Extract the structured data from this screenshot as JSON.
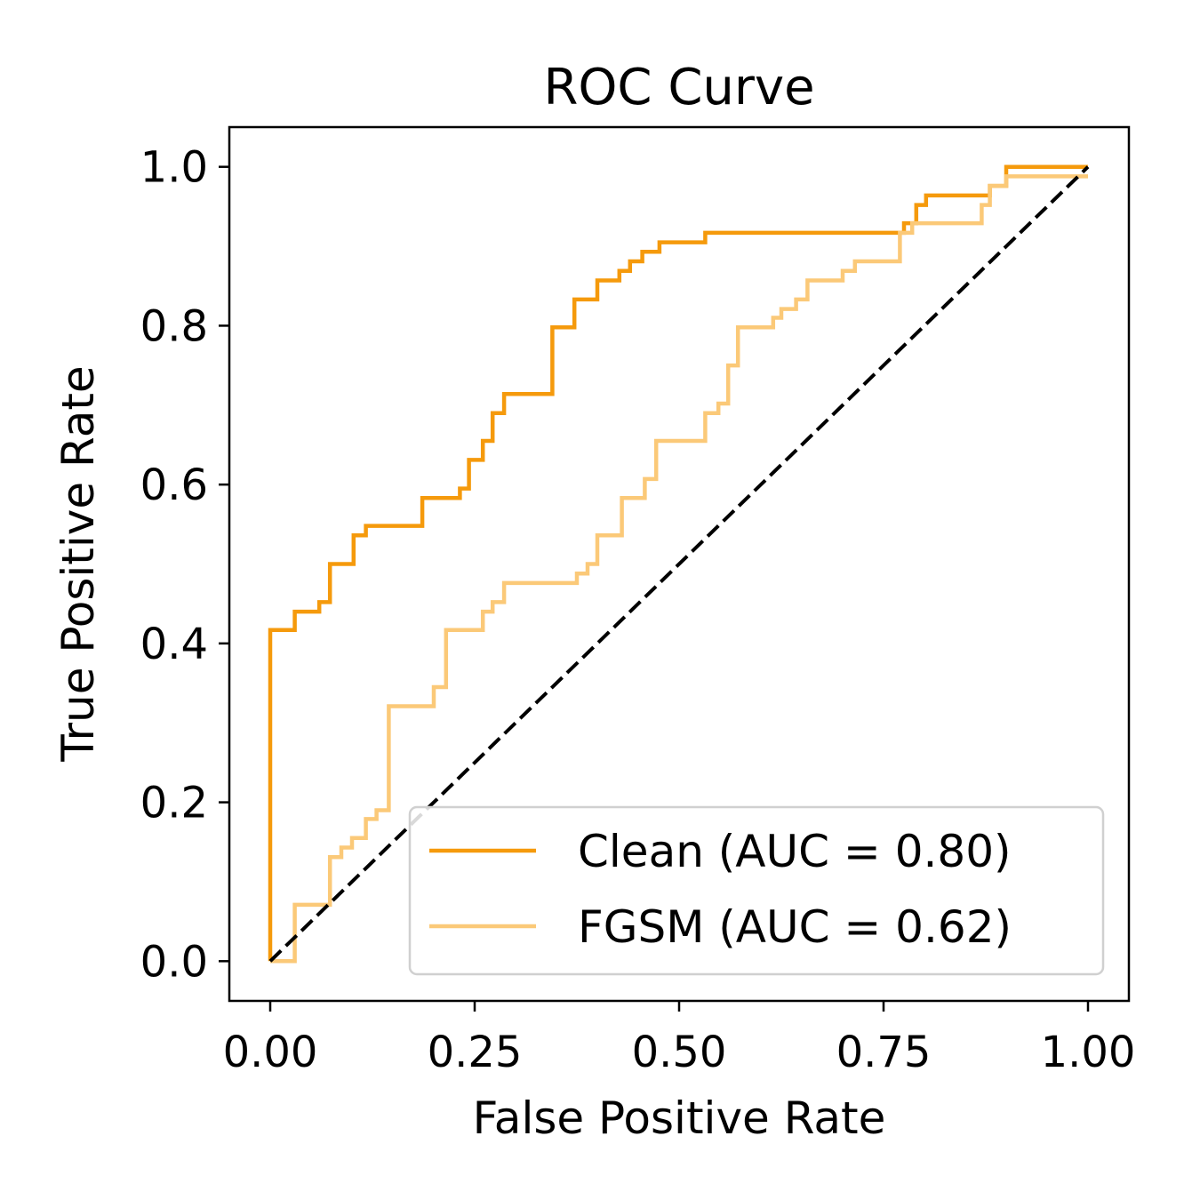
{
  "chart_data": {
    "type": "line",
    "title": "ROC Curve",
    "xlabel": "False Positive Rate",
    "ylabel": "True Positive Rate",
    "xlim": [
      -0.05,
      1.05
    ],
    "ylim": [
      -0.05,
      1.05
    ],
    "xticks": [
      0.0,
      0.25,
      0.5,
      0.75,
      1.0
    ],
    "xtick_labels": [
      "0.00",
      "0.25",
      "0.50",
      "0.75",
      "1.00"
    ],
    "yticks": [
      0.0,
      0.2,
      0.4,
      0.6,
      0.8,
      1.0
    ],
    "ytick_labels": [
      "0.0",
      "0.2",
      "0.4",
      "0.6",
      "0.8",
      "1.0"
    ],
    "grid": false,
    "legend_position": "lower-right",
    "series": [
      {
        "name": "Clean (AUC = 0.80)",
        "color": "#f59a0c",
        "x": [
          0.0,
          0.0,
          0.03,
          0.03,
          0.06,
          0.06,
          0.073,
          0.073,
          0.102,
          0.102,
          0.117,
          0.117,
          0.186,
          0.186,
          0.232,
          0.232,
          0.243,
          0.243,
          0.26,
          0.26,
          0.272,
          0.272,
          0.286,
          0.286,
          0.345,
          0.345,
          0.372,
          0.372,
          0.4,
          0.4,
          0.427,
          0.427,
          0.44,
          0.44,
          0.455,
          0.455,
          0.476,
          0.476,
          0.532,
          0.532,
          0.602,
          0.602,
          0.775,
          0.775,
          0.79,
          0.79,
          0.802,
          0.802,
          0.88,
          0.88,
          0.9,
          0.9,
          1.0
        ],
        "y": [
          0.0,
          0.417,
          0.417,
          0.44,
          0.44,
          0.452,
          0.452,
          0.5,
          0.5,
          0.536,
          0.536,
          0.548,
          0.548,
          0.583,
          0.583,
          0.595,
          0.595,
          0.631,
          0.631,
          0.655,
          0.655,
          0.69,
          0.69,
          0.714,
          0.714,
          0.798,
          0.798,
          0.833,
          0.833,
          0.857,
          0.857,
          0.869,
          0.869,
          0.881,
          0.881,
          0.893,
          0.893,
          0.905,
          0.905,
          0.917,
          0.917,
          0.917,
          0.917,
          0.929,
          0.929,
          0.952,
          0.952,
          0.964,
          0.964,
          0.976,
          0.976,
          1.0,
          1.0
        ]
      },
      {
        "name": "FGSM (AUC = 0.62)",
        "color": "#fbc978",
        "x": [
          0.0,
          0.03,
          0.03,
          0.073,
          0.073,
          0.087,
          0.087,
          0.1,
          0.1,
          0.117,
          0.117,
          0.13,
          0.13,
          0.145,
          0.145,
          0.2,
          0.2,
          0.215,
          0.215,
          0.26,
          0.26,
          0.272,
          0.272,
          0.286,
          0.286,
          0.375,
          0.375,
          0.388,
          0.388,
          0.4,
          0.4,
          0.43,
          0.43,
          0.458,
          0.458,
          0.472,
          0.472,
          0.532,
          0.532,
          0.548,
          0.548,
          0.56,
          0.56,
          0.572,
          0.572,
          0.615,
          0.615,
          0.625,
          0.625,
          0.643,
          0.643,
          0.657,
          0.657,
          0.7,
          0.7,
          0.715,
          0.715,
          0.77,
          0.77,
          0.785,
          0.785,
          0.87,
          0.87,
          0.88,
          0.88,
          0.9,
          0.9,
          1.0
        ],
        "y": [
          0.0,
          0.0,
          0.071,
          0.071,
          0.131,
          0.131,
          0.143,
          0.143,
          0.155,
          0.155,
          0.179,
          0.179,
          0.19,
          0.19,
          0.321,
          0.321,
          0.345,
          0.345,
          0.417,
          0.417,
          0.44,
          0.44,
          0.452,
          0.452,
          0.476,
          0.476,
          0.488,
          0.488,
          0.5,
          0.5,
          0.536,
          0.536,
          0.583,
          0.583,
          0.607,
          0.607,
          0.655,
          0.655,
          0.69,
          0.69,
          0.702,
          0.702,
          0.75,
          0.75,
          0.798,
          0.798,
          0.81,
          0.81,
          0.821,
          0.821,
          0.833,
          0.833,
          0.857,
          0.857,
          0.869,
          0.869,
          0.881,
          0.881,
          0.917,
          0.917,
          0.929,
          0.929,
          0.952,
          0.952,
          0.976,
          0.976,
          0.988,
          0.988
        ]
      },
      {
        "name": "",
        "color": "#000000",
        "style": "dashed",
        "x": [
          0.0,
          1.0
        ],
        "y": [
          0.0,
          1.0
        ]
      }
    ]
  }
}
